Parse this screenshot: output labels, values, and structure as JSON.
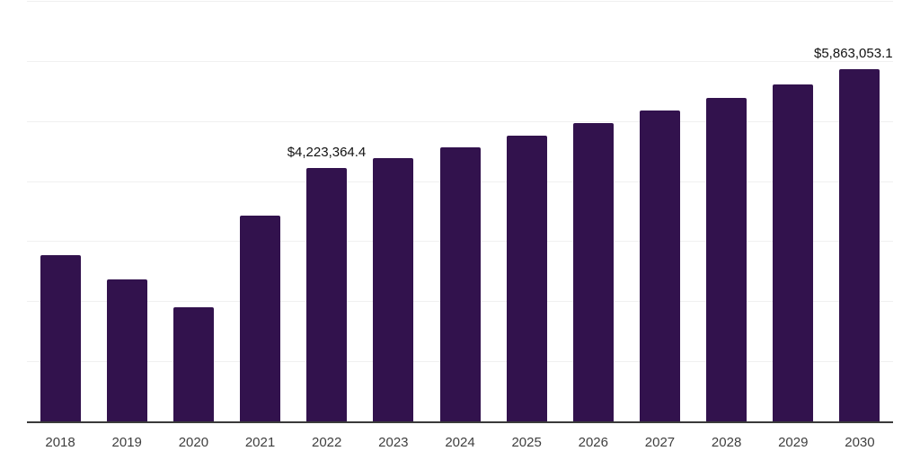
{
  "chart_data": {
    "type": "bar",
    "title": "",
    "xlabel": "",
    "ylabel": "",
    "categories": [
      "2018",
      "2019",
      "2020",
      "2021",
      "2022",
      "2023",
      "2024",
      "2025",
      "2026",
      "2027",
      "2028",
      "2029",
      "2030"
    ],
    "values": [
      2767000,
      2363000,
      1899000,
      3425000,
      4223364.4,
      4382000,
      4562000,
      4750000,
      4966000,
      5170000,
      5385000,
      5615000,
      5863053.1
    ],
    "value_labels": [
      "",
      "",
      "",
      "",
      "$4,223,364.4",
      "",
      "",
      "",
      "",
      "",
      "",
      "",
      "$5,863,053.1"
    ],
    "ylim": [
      0,
      7000000
    ],
    "grid_interval": 1000000,
    "gridlines": "horizontal",
    "y_tick_labels_visible": false,
    "legend": "none",
    "colors": {
      "bar": "#32124D",
      "gridline": "#f0f0f0",
      "axis_line": "#3a3a3a",
      "tick_label": "#3f3f3f",
      "value_label": "#111111",
      "background": "#ffffff"
    }
  }
}
